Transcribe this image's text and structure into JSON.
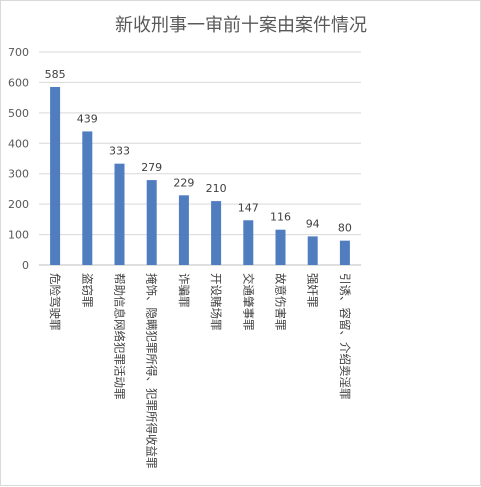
{
  "chart_data": {
    "type": "bar",
    "title": "新收刑事一审前十案由案件情况",
    "categories": [
      "危险驾驶罪",
      "盗窃罪",
      "帮助信息网络犯罪活动罪",
      "掩饰、隐瞒犯罪所得、犯罪所得收益罪",
      "诈骗罪",
      "开设赌场罪",
      "交通肇事罪",
      "故意伤害罪",
      "强奸罪",
      "引诱、容留、介绍卖淫罪"
    ],
    "values": [
      585,
      439,
      333,
      279,
      229,
      210,
      147,
      116,
      94,
      80
    ],
    "ylim": [
      0,
      700
    ],
    "yticks": [
      0,
      100,
      200,
      300,
      400,
      500,
      600,
      700
    ],
    "grid": true,
    "legend": "none",
    "bar_color": "#4f7dc0"
  }
}
